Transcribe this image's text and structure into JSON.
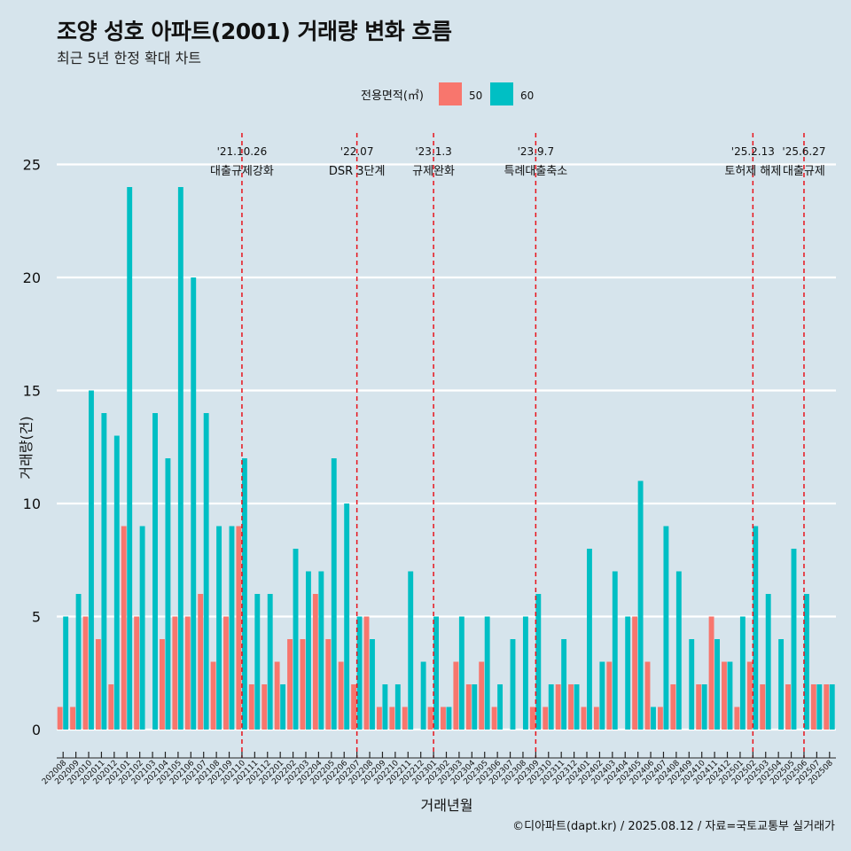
{
  "title": "조양 성호 아파트(2001) 거래량 변화 흐름",
  "subtitle": "최근 5년 한정 확대 차트",
  "caption": "©디아파트(dapt.kr) / 2025.08.12 / 자료=국토교통부 실거래가",
  "colors": {
    "background": "#d6e4ec",
    "s50": "#f8766d",
    "s60": "#00bfc4",
    "event_line": "#e8131b",
    "grid": "#ffffff"
  },
  "chart_data": {
    "type": "bar",
    "xlabel": "거래년월",
    "ylabel": "거래량(건)",
    "ylim": [
      0,
      25
    ],
    "yticks": [
      0,
      5,
      10,
      15,
      20,
      25
    ],
    "grid": true,
    "legend": {
      "title": "전용면적(㎡)",
      "position": "top"
    },
    "categories": [
      "202008",
      "202009",
      "202010",
      "202011",
      "202012",
      "202101",
      "202102",
      "202103",
      "202104",
      "202105",
      "202106",
      "202107",
      "202108",
      "202109",
      "202110",
      "202111",
      "202112",
      "202201",
      "202202",
      "202203",
      "202204",
      "202205",
      "202206",
      "202207",
      "202208",
      "202209",
      "202210",
      "202211",
      "202212",
      "202301",
      "202302",
      "202303",
      "202304",
      "202305",
      "202306",
      "202307",
      "202308",
      "202309",
      "202310",
      "202311",
      "202312",
      "202401",
      "202402",
      "202403",
      "202404",
      "202405",
      "202406",
      "202407",
      "202408",
      "202409",
      "202410",
      "202411",
      "202412",
      "202501",
      "202502",
      "202503",
      "202504",
      "202505",
      "202506",
      "202507",
      "202508"
    ],
    "series": [
      {
        "name": "50",
        "values": [
          1,
          1,
          5,
          4,
          2,
          9,
          5,
          0,
          4,
          5,
          5,
          6,
          3,
          5,
          9,
          2,
          2,
          3,
          4,
          4,
          6,
          4,
          3,
          2,
          5,
          1,
          1,
          1,
          0,
          1,
          1,
          3,
          2,
          3,
          1,
          0,
          0,
          1,
          1,
          2,
          2,
          1,
          1,
          3,
          0,
          5,
          3,
          1,
          2,
          0,
          2,
          5,
          3,
          1,
          3,
          2,
          0,
          2,
          0,
          2,
          2
        ]
      },
      {
        "name": "60",
        "values": [
          5,
          6,
          15,
          14,
          13,
          24,
          9,
          14,
          12,
          24,
          20,
          14,
          9,
          9,
          12,
          6,
          6,
          2,
          8,
          7,
          7,
          12,
          10,
          5,
          4,
          2,
          2,
          7,
          3,
          5,
          1,
          5,
          2,
          5,
          2,
          4,
          5,
          6,
          2,
          4,
          2,
          8,
          3,
          7,
          5,
          11,
          1,
          9,
          7,
          4,
          2,
          4,
          3,
          5,
          9,
          6,
          4,
          8,
          6,
          2,
          2
        ]
      }
    ],
    "events": [
      {
        "date": "'21.10.26",
        "label": "대출규제강화",
        "index": 14
      },
      {
        "date": "'22.07",
        "label": "DSR 3단계",
        "index": 23
      },
      {
        "date": "'23.1.3",
        "label": "규제완화",
        "index": 29
      },
      {
        "date": "'23.9.7",
        "label": "특례대출축소",
        "index": 37
      },
      {
        "date": "'25.2.13",
        "label": "토허제 해제",
        "index": 54
      },
      {
        "date": "'25.6.27",
        "label": "대출규제",
        "index": 58
      }
    ]
  }
}
